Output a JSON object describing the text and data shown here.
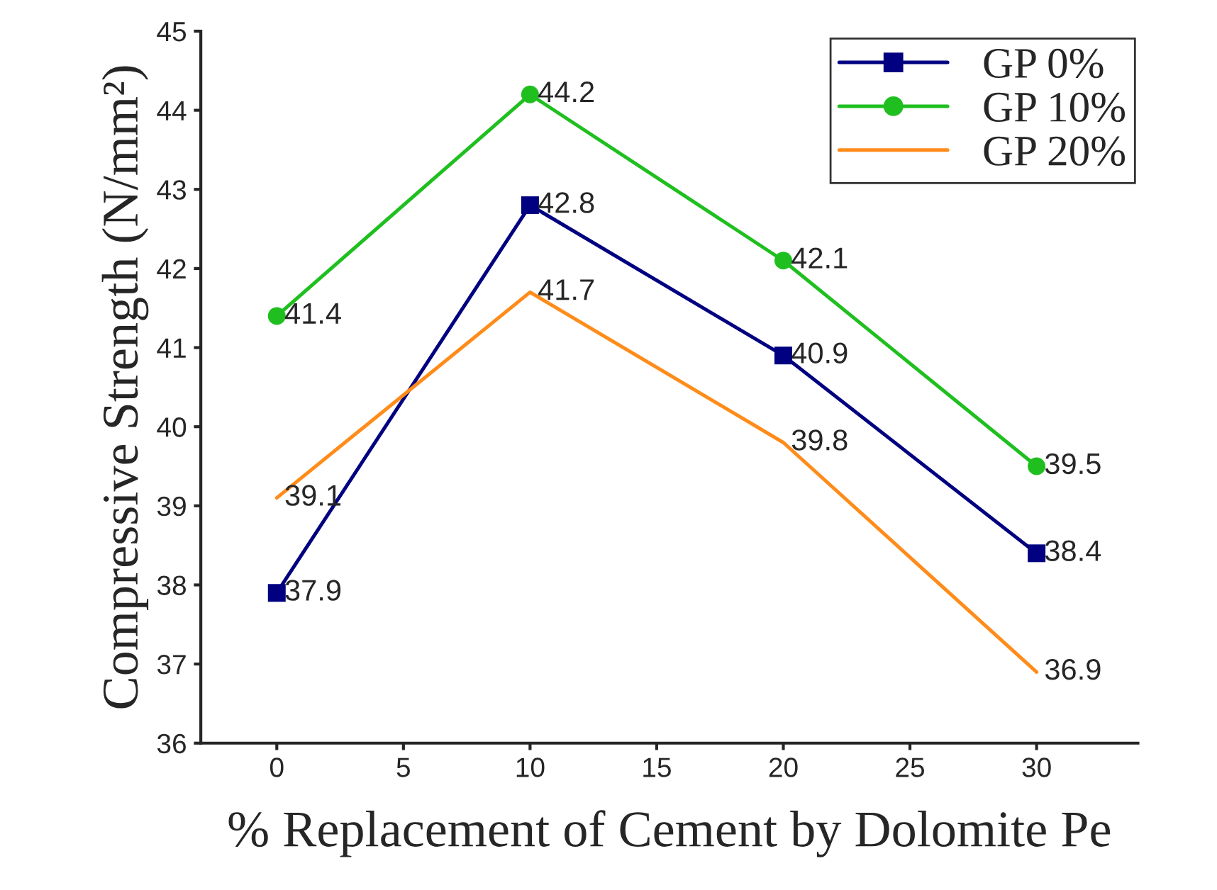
{
  "chart_data": {
    "type": "line",
    "xlabel": "% Replacement of Cement by Dolomite Pe",
    "ylabel": "Compressive Strength (N/mm²)",
    "x": [
      0,
      10,
      20,
      30
    ],
    "series": [
      {
        "name": "GP 0%",
        "color": "#000080",
        "values": [
          37.9,
          42.8,
          40.9,
          38.4
        ],
        "marker": "square"
      },
      {
        "name": "GP 10%",
        "color": "#1fbf1f",
        "values": [
          41.4,
          44.2,
          42.1,
          39.5
        ],
        "marker": "circle"
      },
      {
        "name": "GP 20%",
        "color": "#ff8c1a",
        "values": [
          39.1,
          41.7,
          39.8,
          36.9
        ],
        "marker": "none"
      }
    ],
    "xlim": [
      -3,
      34
    ],
    "xticks": [
      0,
      5,
      10,
      15,
      20,
      25,
      30
    ],
    "ylim": [
      36,
      45
    ],
    "yticks": [
      36,
      37,
      38,
      39,
      40,
      41,
      42,
      43,
      44,
      45
    ],
    "data_labels": true,
    "grid": false,
    "legend": "top right",
    "line_style": "solid"
  }
}
